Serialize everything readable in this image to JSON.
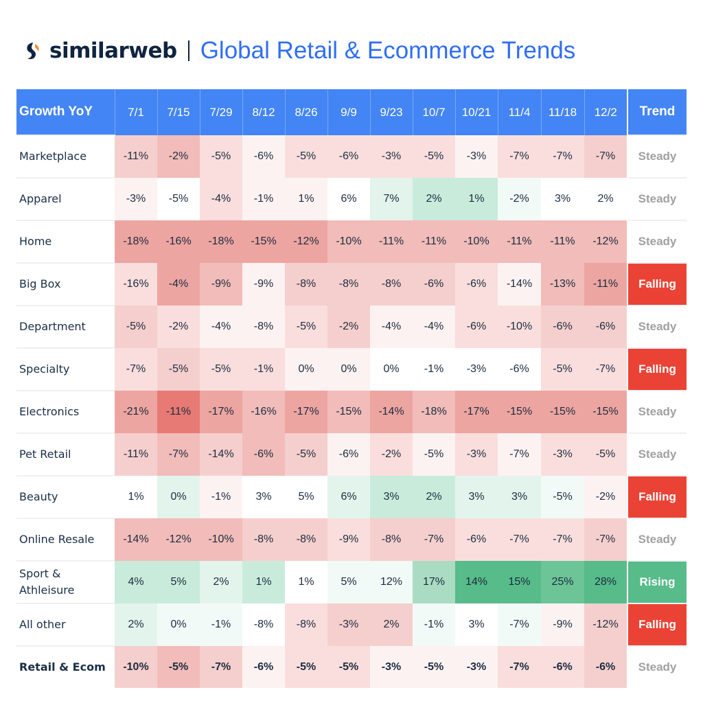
{
  "header": {
    "brand": "similarweb",
    "title": "Global Retail & Ecommerce Trends",
    "brand_colors": {
      "dark": "#0f2440",
      "orange": "#f58a2a",
      "accent": "#2f6ef5"
    }
  },
  "table": {
    "corner_label": "Growth YoY",
    "trend_label": "Trend",
    "columns": [
      "7/1",
      "7/15",
      "7/29",
      "8/12",
      "8/26",
      "9/9",
      "9/23",
      "10/7",
      "10/21",
      "11/4",
      "11/18",
      "12/2"
    ],
    "rows": [
      {
        "label": "Marketplace",
        "values": [
          "-11%",
          "-2%",
          "-5%",
          "-6%",
          "-5%",
          "-6%",
          "-3%",
          "-5%",
          "-3%",
          "-7%",
          "-7%",
          "-7%"
        ],
        "shades": [
          "r3",
          "r4",
          "r2",
          "r1",
          "r2",
          "r2",
          "r2",
          "r2",
          "r1",
          "r2",
          "r2",
          "r3"
        ],
        "trend": "Steady"
      },
      {
        "label": "Apparel",
        "values": [
          "-3%",
          "-5%",
          "-4%",
          "-1%",
          "1%",
          "6%",
          "7%",
          "2%",
          "1%",
          "-2%",
          "3%",
          "2%"
        ],
        "shades": [
          "r1",
          "w",
          "r2",
          "r1",
          "r1",
          "w",
          "g2",
          "g3",
          "g3",
          "g1",
          "w",
          "w"
        ],
        "trend": "Steady"
      },
      {
        "label": "Home",
        "values": [
          "-18%",
          "-16%",
          "-18%",
          "-15%",
          "-12%",
          "-10%",
          "-11%",
          "-11%",
          "-10%",
          "-11%",
          "-11%",
          "-12%"
        ],
        "shades": [
          "r5",
          "r5",
          "r5",
          "r5",
          "r5",
          "r4",
          "r4",
          "r4",
          "r4",
          "r4",
          "r4",
          "r4"
        ],
        "trend": "Steady"
      },
      {
        "label": "Big Box",
        "values": [
          "-16%",
          "-4%",
          "-9%",
          "-9%",
          "-8%",
          "-8%",
          "-8%",
          "-6%",
          "-6%",
          "-14%",
          "-13%",
          "-11%"
        ],
        "shades": [
          "r2",
          "r5",
          "r4",
          "r1",
          "r3",
          "r3",
          "r3",
          "r3",
          "r2",
          "r1",
          "r4",
          "r5"
        ],
        "trend": "Falling"
      },
      {
        "label": "Department",
        "values": [
          "-5%",
          "-2%",
          "-4%",
          "-8%",
          "-5%",
          "-2%",
          "-4%",
          "-4%",
          "-6%",
          "-10%",
          "-6%",
          "-6%"
        ],
        "shades": [
          "r3",
          "r2",
          "r1",
          "r1",
          "r2",
          "r3",
          "r1",
          "r1",
          "r2",
          "r2",
          "r3",
          "r3"
        ],
        "trend": "Steady"
      },
      {
        "label": "Specialty",
        "values": [
          "-7%",
          "-5%",
          "-5%",
          "-1%",
          "0%",
          "0%",
          "0%",
          "-1%",
          "-3%",
          "-6%",
          "-5%",
          "-7%"
        ],
        "shades": [
          "r2",
          "r3",
          "r2",
          "r2",
          "r1",
          "r1",
          "w",
          "w",
          "w",
          "w",
          "r2",
          "r2"
        ],
        "trend": "Falling"
      },
      {
        "label": "Electronics",
        "values": [
          "-21%",
          "-11%",
          "-17%",
          "-16%",
          "-17%",
          "-15%",
          "-14%",
          "-18%",
          "-17%",
          "-15%",
          "-15%",
          "-15%"
        ],
        "shades": [
          "r5",
          "r6",
          "r5",
          "r4",
          "r5",
          "r4",
          "r5",
          "r4",
          "r5",
          "r5",
          "r5",
          "r5"
        ],
        "trend": "Steady"
      },
      {
        "label": "Pet Retail",
        "values": [
          "-11%",
          "-7%",
          "-14%",
          "-6%",
          "-5%",
          "-6%",
          "-2%",
          "-5%",
          "-3%",
          "-7%",
          "-3%",
          "-5%"
        ],
        "shades": [
          "r3",
          "r4",
          "r3",
          "r4",
          "r3",
          "r1",
          "r2",
          "r1",
          "r2",
          "r1",
          "r2",
          "r2"
        ],
        "trend": "Steady"
      },
      {
        "label": "Beauty",
        "values": [
          "1%",
          "0%",
          "-1%",
          "3%",
          "5%",
          "6%",
          "3%",
          "2%",
          "3%",
          "3%",
          "-5%",
          "-2%"
        ],
        "shades": [
          "w",
          "g2",
          "r1",
          "w",
          "w",
          "g2",
          "g3",
          "g3",
          "g2",
          "g2",
          "g1",
          "r1"
        ],
        "trend": "Falling"
      },
      {
        "label": "Online Resale",
        "values": [
          "-14%",
          "-12%",
          "-10%",
          "-8%",
          "-8%",
          "-9%",
          "-8%",
          "-7%",
          "-6%",
          "-7%",
          "-7%",
          "-7%"
        ],
        "shades": [
          "r4",
          "r4",
          "r4",
          "r3",
          "r3",
          "r2",
          "r3",
          "r3",
          "r2",
          "r2",
          "r2",
          "r3"
        ],
        "trend": "Steady"
      },
      {
        "label": "Sport & Athleisure",
        "values": [
          "4%",
          "5%",
          "2%",
          "1%",
          "1%",
          "5%",
          "12%",
          "17%",
          "14%",
          "15%",
          "25%",
          "28%"
        ],
        "shades": [
          "g3",
          "g3",
          "g2",
          "g3",
          "w",
          "g1",
          "g1",
          "g4",
          "g6",
          "g6",
          "g5",
          "g6"
        ],
        "trend": "Rising"
      },
      {
        "label": "All other",
        "values": [
          "2%",
          "0%",
          "-1%",
          "-8%",
          "-8%",
          "-3%",
          "2%",
          "-1%",
          "3%",
          "-7%",
          "-9%",
          "-12%"
        ],
        "shades": [
          "g2",
          "g1",
          "g1",
          "w",
          "r2",
          "r3",
          "r3",
          "g1",
          "w",
          "g1",
          "r1",
          "r3"
        ],
        "trend": "Falling"
      },
      {
        "label": "Retail & Ecom",
        "values": [
          "-10%",
          "-5%",
          "-7%",
          "-6%",
          "-5%",
          "-5%",
          "-3%",
          "-5%",
          "-3%",
          "-7%",
          "-6%",
          "-6%"
        ],
        "shades": [
          "r3",
          "r4",
          "r3",
          "r1",
          "r2",
          "r2",
          "r1",
          "r1",
          "r1",
          "r2",
          "r2",
          "r3"
        ],
        "trend": "Steady",
        "total": true
      }
    ]
  },
  "chart_data": {
    "type": "heatmap",
    "title": "Global Retail & Ecommerce Trends",
    "xlabel": "",
    "ylabel": "Growth YoY",
    "categories": [
      "7/1",
      "7/15",
      "7/29",
      "8/12",
      "8/26",
      "9/9",
      "9/23",
      "10/7",
      "10/21",
      "11/4",
      "11/18",
      "12/2"
    ],
    "series": [
      {
        "name": "Marketplace",
        "values": [
          -11,
          -2,
          -5,
          -6,
          -5,
          -6,
          -3,
          -5,
          -3,
          -7,
          -7,
          -7
        ],
        "trend": "Steady"
      },
      {
        "name": "Apparel",
        "values": [
          -3,
          -5,
          -4,
          -1,
          1,
          6,
          7,
          2,
          1,
          -2,
          3,
          2
        ],
        "trend": "Steady"
      },
      {
        "name": "Home",
        "values": [
          -18,
          -16,
          -18,
          -15,
          -12,
          -10,
          -11,
          -11,
          -10,
          -11,
          -11,
          -12
        ],
        "trend": "Steady"
      },
      {
        "name": "Big Box",
        "values": [
          -16,
          -4,
          -9,
          -9,
          -8,
          -8,
          -8,
          -6,
          -6,
          -14,
          -13,
          -11
        ],
        "trend": "Falling"
      },
      {
        "name": "Department",
        "values": [
          -5,
          -2,
          -4,
          -8,
          -5,
          -2,
          -4,
          -4,
          -6,
          -10,
          -6,
          -6
        ],
        "trend": "Steady"
      },
      {
        "name": "Specialty",
        "values": [
          -7,
          -5,
          -5,
          -1,
          0,
          0,
          0,
          -1,
          -3,
          -6,
          -5,
          -7
        ],
        "trend": "Falling"
      },
      {
        "name": "Electronics",
        "values": [
          -21,
          -11,
          -17,
          -16,
          -17,
          -15,
          -14,
          -18,
          -17,
          -15,
          -15,
          -15
        ],
        "trend": "Steady"
      },
      {
        "name": "Pet Retail",
        "values": [
          -11,
          -7,
          -14,
          -6,
          -5,
          -6,
          -2,
          -5,
          -3,
          -7,
          -3,
          -5
        ],
        "trend": "Steady"
      },
      {
        "name": "Beauty",
        "values": [
          1,
          0,
          -1,
          3,
          5,
          6,
          3,
          2,
          3,
          3,
          -5,
          -2
        ],
        "trend": "Falling"
      },
      {
        "name": "Online Resale",
        "values": [
          -14,
          -12,
          -10,
          -8,
          -8,
          -9,
          -8,
          -7,
          -6,
          -7,
          -7,
          -7
        ],
        "trend": "Steady"
      },
      {
        "name": "Sport & Athleisure",
        "values": [
          4,
          5,
          2,
          1,
          1,
          5,
          12,
          17,
          14,
          15,
          25,
          28
        ],
        "trend": "Rising"
      },
      {
        "name": "All other",
        "values": [
          2,
          0,
          -1,
          -8,
          -8,
          -3,
          2,
          -1,
          3,
          -7,
          -9,
          -12
        ],
        "trend": "Falling"
      },
      {
        "name": "Retail & Ecom",
        "values": [
          -10,
          -5,
          -7,
          -6,
          -5,
          -5,
          -3,
          -5,
          -3,
          -7,
          -6,
          -6
        ],
        "trend": "Steady"
      }
    ],
    "unit": "%",
    "colors": {
      "header": "#4385f4",
      "falling": "#ea4335",
      "rising": "#57bb8a",
      "steady_text": "#a0a0a0"
    }
  }
}
